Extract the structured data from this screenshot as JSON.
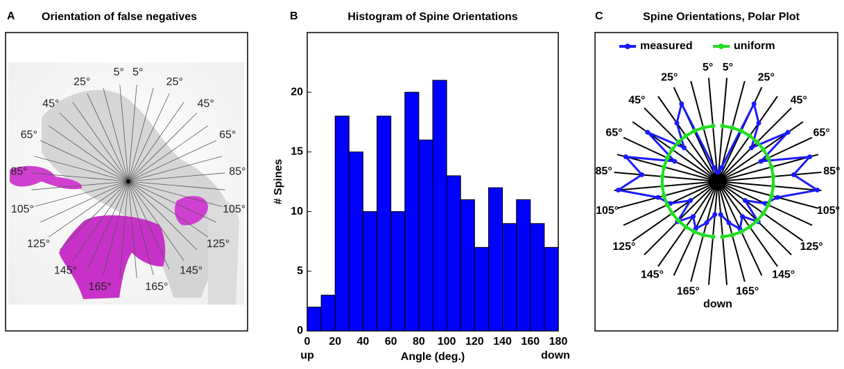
{
  "chart_data": [
    {
      "type": "image",
      "label": "A",
      "title": "Orientation of false negatives",
      "angle_labels": [
        "5°",
        "25°",
        "45°",
        "65°",
        "85°",
        "105°",
        "125°",
        "145°",
        "165°"
      ]
    },
    {
      "type": "histogram",
      "label": "B",
      "title": "Histogram of Spine Orientations",
      "xlabel": "Angle (deg.)",
      "ylabel": "# Spines",
      "x_end_labels": [
        "up",
        "down"
      ],
      "bins": [
        0,
        10,
        20,
        30,
        40,
        50,
        60,
        70,
        80,
        90,
        100,
        110,
        120,
        130,
        140,
        150,
        160,
        170,
        180
      ],
      "counts": [
        2,
        3,
        18,
        15,
        10,
        18,
        10,
        20,
        16,
        21,
        13,
        11,
        7,
        12,
        9,
        11,
        9,
        7
      ],
      "color": "#0000ff",
      "xlim": [
        0,
        180
      ],
      "ylim": [
        0,
        25
      ],
      "xticks": [
        0,
        20,
        40,
        60,
        80,
        100,
        120,
        140,
        160,
        180
      ],
      "yticks": [
        0,
        5,
        10,
        15,
        20
      ]
    },
    {
      "type": "polar",
      "label": "C",
      "title": "Spine Orientations, Polar Plot",
      "categories": [
        "5°",
        null,
        "25°",
        null,
        "45°",
        null,
        "65°",
        null,
        "85°",
        null,
        "105°",
        null,
        "125°",
        null,
        "145°",
        null,
        "165°",
        null
      ],
      "series": [
        {
          "name": "measured",
          "color": "#1a1aff",
          "values": [
            2,
            3,
            18,
            15,
            10,
            18,
            10,
            20,
            16,
            21,
            13,
            11,
            7,
            12,
            9,
            11,
            9,
            7
          ]
        },
        {
          "name": "uniform",
          "color": "#22dd22",
          "values": [
            11.7,
            11.7,
            11.7,
            11.7,
            11.7,
            11.7,
            11.7,
            11.7,
            11.7,
            11.7,
            11.7,
            11.7,
            11.7,
            11.7,
            11.7,
            11.7,
            11.7,
            11.7
          ]
        }
      ],
      "rlim": [
        0,
        22
      ],
      "bottom_label": "down"
    }
  ]
}
